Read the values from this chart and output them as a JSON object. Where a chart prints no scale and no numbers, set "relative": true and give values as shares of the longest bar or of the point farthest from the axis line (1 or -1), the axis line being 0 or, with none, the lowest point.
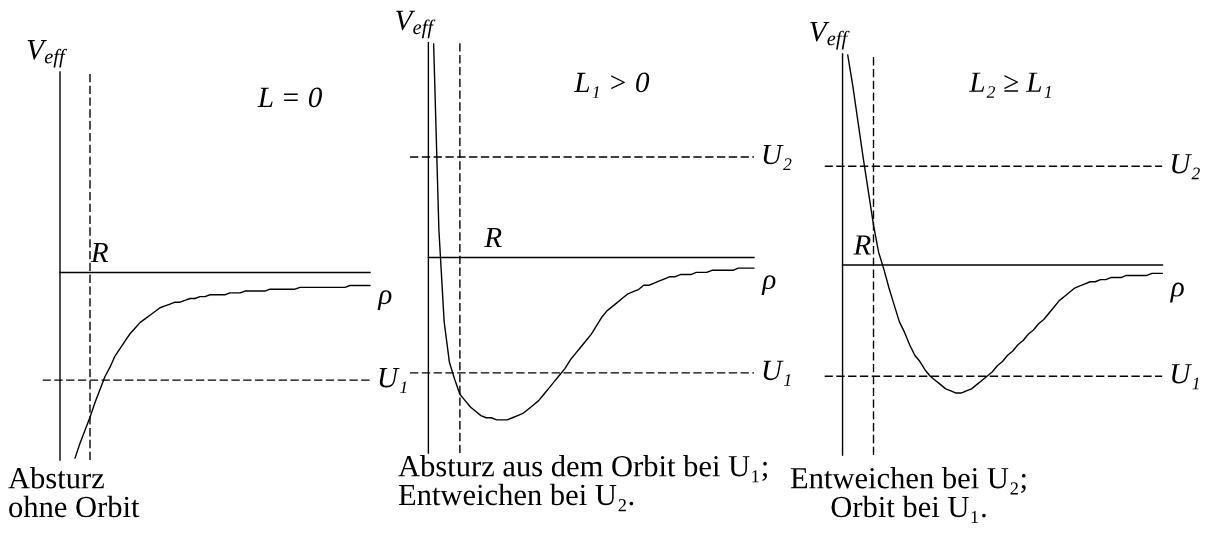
{
  "chart_data": [
    {
      "type": "line",
      "relative": true,
      "title": "L = 0",
      "xlabel": "ρ",
      "ylabel": "V$_{eff}$",
      "categories": [
        null,
        null,
        null,
        null,
        null,
        null,
        null,
        null,
        null,
        null,
        null,
        null,
        null,
        null,
        null,
        null,
        null,
        null,
        null,
        null,
        null,
        null,
        null,
        null,
        null,
        null,
        null,
        null,
        null,
        null,
        null,
        null,
        null,
        null,
        null,
        null,
        null,
        null,
        null,
        null,
        null,
        null,
        null,
        null,
        null,
        null,
        null,
        null,
        null,
        null,
        null,
        null,
        null,
        null,
        null,
        null,
        null,
        null,
        null,
        null,
        null,
        null,
        null
      ],
      "series": [
        {
          "color": "#000000",
          "values": [
            null,
            null,
            null,
            -1,
            -0.92,
            -0.85,
            -0.78,
            -0.7,
            -0.63,
            -0.56,
            -0.51,
            -0.45,
            -0.41,
            -0.37,
            -0.33,
            -0.3,
            -0.27,
            -0.25,
            -0.23,
            -0.21,
            -0.19,
            -0.18,
            -0.17,
            -0.16,
            -0.16,
            -0.15,
            -0.14,
            -0.14,
            -0.13,
            -0.13,
            -0.12,
            -0.12,
            -0.12,
            -0.12,
            -0.11,
            -0.11,
            -0.11,
            -0.1,
            -0.1,
            -0.1,
            -0.1,
            -0.1,
            -0.09,
            -0.09,
            -0.09,
            -0.09,
            -0.09,
            -0.09,
            -0.08,
            -0.08,
            -0.08,
            -0.08,
            -0.08,
            -0.08,
            -0.08,
            -0.08,
            -0.08,
            -0.08,
            -0.07,
            -0.07,
            -0.07,
            -0.07,
            -0.07
          ]
        }
      ],
      "ref_lines": [
        {
          "axis": "y",
          "value": -0.58,
          "label": "U₁",
          "color": "#000000",
          "line_style": "dashed"
        }
      ],
      "annotations": [
        "R",
        "Absturz\nohne Orbit"
      ]
    },
    {
      "type": "line",
      "relative": true,
      "title": "L₁ > 0",
      "xlabel": "ρ",
      "ylabel": "V$_{eff}$",
      "categories": [
        null,
        null,
        null,
        null,
        null,
        null,
        null,
        null,
        null,
        null,
        null,
        null,
        null,
        null,
        null,
        null,
        null,
        null,
        null,
        null,
        null,
        null,
        null,
        null,
        null,
        null,
        null,
        null,
        null,
        null,
        null,
        null,
        null,
        null,
        null,
        null,
        null,
        null,
        null,
        null,
        null,
        null,
        null,
        null,
        null,
        null,
        null,
        null,
        null,
        null,
        null,
        null,
        null,
        null,
        null,
        null,
        null,
        null,
        null,
        null,
        null,
        null,
        null
      ],
      "series": [
        {
          "color": "#000000",
          "values": [
            null,
            1,
            0.13,
            -0.3,
            -0.49,
            -0.57,
            -0.64,
            -0.67,
            -0.7,
            -0.72,
            -0.74,
            -0.75,
            -0.75,
            -0.76,
            -0.76,
            -0.76,
            -0.75,
            -0.74,
            -0.73,
            -0.71,
            -0.69,
            -0.67,
            -0.64,
            -0.61,
            -0.58,
            -0.55,
            -0.52,
            -0.48,
            -0.45,
            -0.42,
            -0.39,
            -0.36,
            -0.32,
            -0.28,
            -0.25,
            -0.23,
            -0.21,
            -0.19,
            -0.17,
            -0.16,
            -0.15,
            -0.13,
            -0.13,
            -0.12,
            -0.11,
            -0.1,
            -0.09,
            -0.09,
            -0.08,
            -0.08,
            -0.08,
            -0.07,
            -0.07,
            -0.07,
            -0.06,
            -0.06,
            -0.06,
            -0.06,
            -0.06,
            -0.05,
            -0.05,
            -0.05,
            -0.05
          ]
        }
      ],
      "ref_lines": [
        {
          "axis": "y",
          "value": 0.47,
          "label": "U₂",
          "color": "#000000",
          "line_style": "dashed"
        },
        {
          "axis": "y",
          "value": -0.54,
          "label": "U₁",
          "color": "#000000",
          "line_style": "dashed"
        }
      ],
      "annotations": [
        "R",
        "Absturz aus dem Orbit bei U₁;\nEntweichen bei U₂."
      ]
    },
    {
      "type": "line",
      "relative": true,
      "title": "L₂ ≥ L₁",
      "xlabel": "ρ",
      "ylabel": "V$_{eff}$",
      "categories": [
        null,
        null,
        null,
        null,
        null,
        null,
        null,
        null,
        null,
        null,
        null,
        null,
        null,
        null,
        null,
        null,
        null,
        null,
        null,
        null,
        null,
        null,
        null,
        null,
        null,
        null,
        null,
        null,
        null,
        null,
        null,
        null,
        null,
        null,
        null,
        null,
        null,
        null,
        null,
        null,
        null,
        null,
        null,
        null,
        null,
        null,
        null,
        null,
        null,
        null,
        null,
        null,
        null,
        null,
        null,
        null,
        null,
        null,
        null,
        null,
        null,
        null,
        null
      ],
      "series": [
        {
          "color": "#000000",
          "values": [
            null,
            1,
            0.85,
            0.68,
            0.51,
            0.35,
            0.19,
            0.06,
            -0.02,
            -0.11,
            -0.19,
            -0.27,
            -0.32,
            -0.38,
            -0.43,
            -0.46,
            -0.5,
            -0.53,
            -0.55,
            -0.57,
            -0.59,
            -0.6,
            -0.61,
            -0.61,
            -0.6,
            -0.59,
            -0.57,
            -0.55,
            -0.53,
            -0.51,
            -0.48,
            -0.46,
            -0.43,
            -0.41,
            -0.38,
            -0.36,
            -0.33,
            -0.31,
            -0.28,
            -0.26,
            -0.23,
            -0.2,
            -0.17,
            -0.15,
            -0.13,
            -0.11,
            -0.1,
            -0.09,
            -0.08,
            -0.08,
            -0.07,
            -0.07,
            -0.06,
            -0.06,
            -0.06,
            -0.05,
            -0.05,
            -0.05,
            -0.05,
            -0.05,
            -0.04,
            -0.04,
            -0.04
          ]
        }
      ],
      "ref_lines": [
        {
          "axis": "y",
          "value": 0.47,
          "label": "U₂",
          "color": "#000000",
          "line_style": "dashed"
        },
        {
          "axis": "y",
          "value": -0.53,
          "label": "U₁",
          "color": "#000000",
          "line_style": "dashed"
        }
      ],
      "annotations": [
        "R",
        "Entweichen bei U₂;\nOrbit bei U₁."
      ]
    }
  ]
}
